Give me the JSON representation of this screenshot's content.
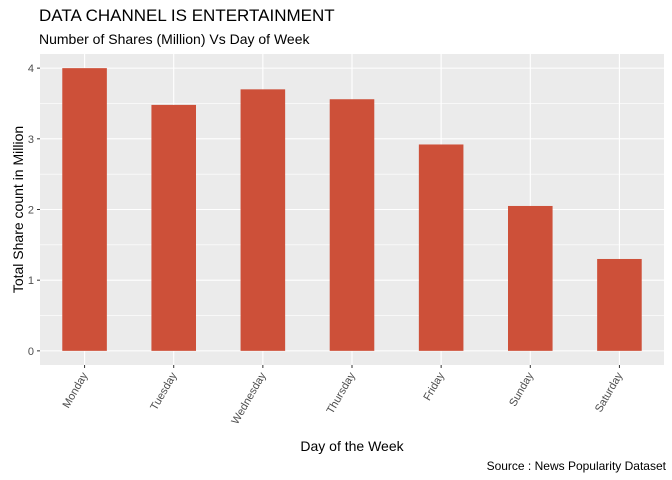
{
  "chart_data": {
    "type": "bar",
    "title": "DATA CHANNEL IS ENTERTAINMENT",
    "subtitle": "Number of Shares (Million) Vs Day of Week",
    "caption": "Source : News Popularity Dataset",
    "xlabel": "Day of the Week",
    "ylabel": "Total Share count in Million",
    "categories": [
      "Monday",
      "Tuesday",
      "Wednesday",
      "Thursday",
      "Friday",
      "Sunday",
      "Saturday"
    ],
    "values": [
      4.0,
      3.48,
      3.7,
      3.56,
      2.92,
      2.05,
      1.3
    ],
    "ylim": [
      -0.2,
      4.2
    ],
    "yticks": [
      0,
      1,
      2,
      3,
      4
    ],
    "bar_color": "#CD5039",
    "panel_color": "#EBEBEB",
    "grid_color": "#FFFFFF",
    "grid": true,
    "legend": "none"
  }
}
